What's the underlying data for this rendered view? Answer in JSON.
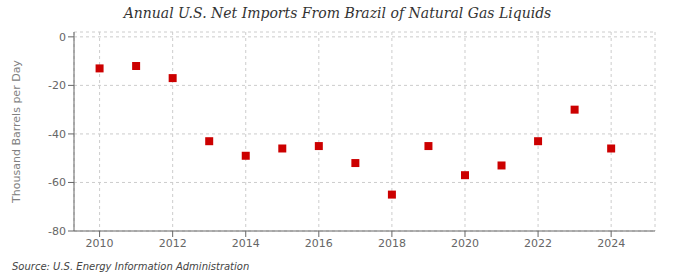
{
  "chart_data": {
    "type": "scatter",
    "title": "Annual U.S. Net Imports From Brazil of Natural Gas Liquids",
    "ylabel": "Thousand Barrels per Day",
    "annotation": "Source: U.S. Energy Information Administration",
    "x": [
      2010,
      2011,
      2012,
      2013,
      2014,
      2015,
      2016,
      2017,
      2018,
      2019,
      2020,
      2021,
      2022,
      2023,
      2024
    ],
    "values": [
      -13,
      -12,
      -17,
      -43,
      -49,
      -46,
      -45,
      -52,
      -65,
      -45,
      -57,
      -53,
      -43,
      -30,
      -46
    ],
    "xlim": [
      2009.3,
      2025.2
    ],
    "ylim": [
      -80,
      2
    ],
    "xticks": [
      2010,
      2012,
      2014,
      2016,
      2018,
      2020,
      2022,
      2024
    ],
    "yticks": [
      0,
      -20,
      -40,
      -60,
      -80
    ],
    "color": "#cc0000",
    "marker": "square",
    "grid": true
  }
}
